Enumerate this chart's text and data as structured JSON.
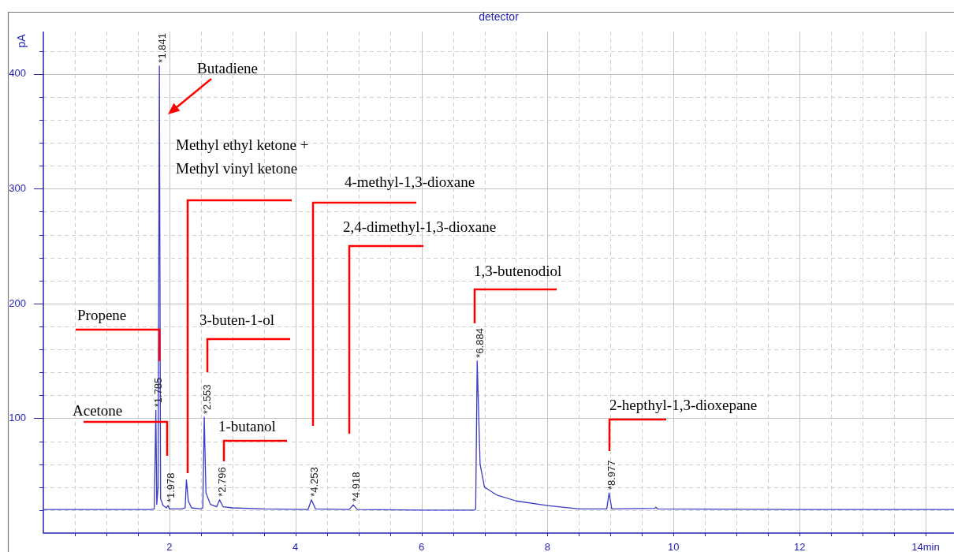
{
  "chart_data": {
    "type": "line",
    "title": "detector",
    "ylabel": "pA",
    "x": [
      0,
      1.7,
      1.76,
      1.785,
      1.8,
      1.82,
      1.841,
      1.86,
      1.9,
      1.95,
      1.978,
      2.0,
      2.2,
      2.25,
      2.27,
      2.3,
      2.35,
      2.5,
      2.53,
      2.553,
      2.58,
      2.65,
      2.75,
      2.796,
      2.85,
      3.0,
      3.5,
      4.2,
      4.253,
      4.32,
      4.85,
      4.918,
      4.98,
      6.0,
      6.84,
      6.86,
      6.884,
      6.93,
      7.0,
      7.2,
      7.5,
      8.0,
      8.5,
      8.94,
      8.977,
      9.02,
      9.7,
      9.72,
      9.75,
      12,
      14.45
    ],
    "series": [
      {
        "color": "#3a3ac4",
        "values": [
          20.5,
          20.5,
          21,
          107,
          25,
          40,
          407,
          30,
          24,
          22,
          24,
          21,
          21,
          22,
          46.5,
          28,
          22,
          21,
          22,
          101,
          35,
          25,
          23,
          29,
          23,
          22,
          21,
          20.5,
          29,
          21,
          20.5,
          24.6,
          20.5,
          20,
          20,
          21,
          150,
          60,
          40,
          33,
          28,
          24,
          21,
          21,
          35,
          21,
          21.5,
          22.5,
          21,
          20.5,
          20.5
        ]
      }
    ],
    "xlim": [
      0,
      14.45
    ],
    "ylim": [
      0,
      437
    ],
    "xticks": [
      {
        "value": 0.5,
        "label": null
      },
      {
        "value": 1,
        "label": null
      },
      {
        "value": 1.5,
        "label": null
      },
      2,
      {
        "value": 2.5,
        "label": null
      },
      {
        "value": 3,
        "label": null
      },
      {
        "value": 3.5,
        "label": null
      },
      4,
      {
        "value": 4.5,
        "label": null
      },
      {
        "value": 5,
        "label": null
      },
      {
        "value": 5.5,
        "label": null
      },
      6,
      {
        "value": 6.5,
        "label": null
      },
      {
        "value": 7,
        "label": null
      },
      {
        "value": 7.5,
        "label": null
      },
      8,
      {
        "value": 8.5,
        "label": null
      },
      {
        "value": 9,
        "label": null
      },
      {
        "value": 9.5,
        "label": null
      },
      10,
      {
        "value": 10.5,
        "label": null
      },
      {
        "value": 11,
        "label": null
      },
      {
        "value": 11.5,
        "label": null
      },
      12,
      {
        "value": 12.5,
        "label": null
      },
      {
        "value": 13,
        "label": null
      },
      {
        "value": 13.5,
        "label": null
      },
      {
        "value": 14,
        "label": "14min"
      }
    ],
    "yticks": [
      {
        "value": 20,
        "label": null
      },
      {
        "value": 40,
        "label": null
      },
      {
        "value": 60,
        "label": null
      },
      {
        "value": 80,
        "label": null
      },
      100,
      {
        "value": 120,
        "label": null
      },
      {
        "value": 140,
        "label": null
      },
      {
        "value": 160,
        "label": null
      },
      {
        "value": 180,
        "label": null
      },
      200,
      {
        "value": 220,
        "label": null
      },
      {
        "value": 240,
        "label": null
      },
      {
        "value": 260,
        "label": null
      },
      {
        "value": 280,
        "label": null
      },
      300,
      {
        "value": 320,
        "label": null
      },
      {
        "value": 340,
        "label": null
      },
      {
        "value": 360,
        "label": null
      },
      {
        "value": 380,
        "label": null
      },
      400,
      {
        "value": 420,
        "label": null
      }
    ],
    "grid": true,
    "legend": false,
    "marker": "none",
    "annotations": [
      "Butadiene",
      "Methyl ethyl ketone + Methyl vinyl ketone",
      "4-methyl-1,3-dioxane",
      "2,4-dimethyl-1,3-dioxane",
      "1,3-butenodiol",
      {
        "text": "Propene",
        "x": 1.841,
        "y": 150
      },
      "3-buten-1-ol",
      "Acetone",
      "2-hepthyl-1,3-dioxepane",
      "1-butanol",
      {
        "text": "*1.841",
        "x": 1.841,
        "y": 407
      },
      {
        "text": "*1.785",
        "x": 1.785,
        "y": 107
      },
      {
        "text": "*1.978",
        "x": 1.978,
        "y": 24
      },
      {
        "text": "*2.553",
        "x": 2.553,
        "y": 101
      },
      {
        "text": "*2.796",
        "x": 2.796,
        "y": 29
      },
      {
        "text": "*4.253",
        "x": 4.253,
        "y": 29
      },
      {
        "text": "*4.918",
        "x": 4.918,
        "y": 24.6
      },
      {
        "text": "*6.884",
        "x": 6.884,
        "y": 150
      },
      {
        "text": "*8.977",
        "x": 8.977,
        "y": 35
      }
    ]
  }
}
